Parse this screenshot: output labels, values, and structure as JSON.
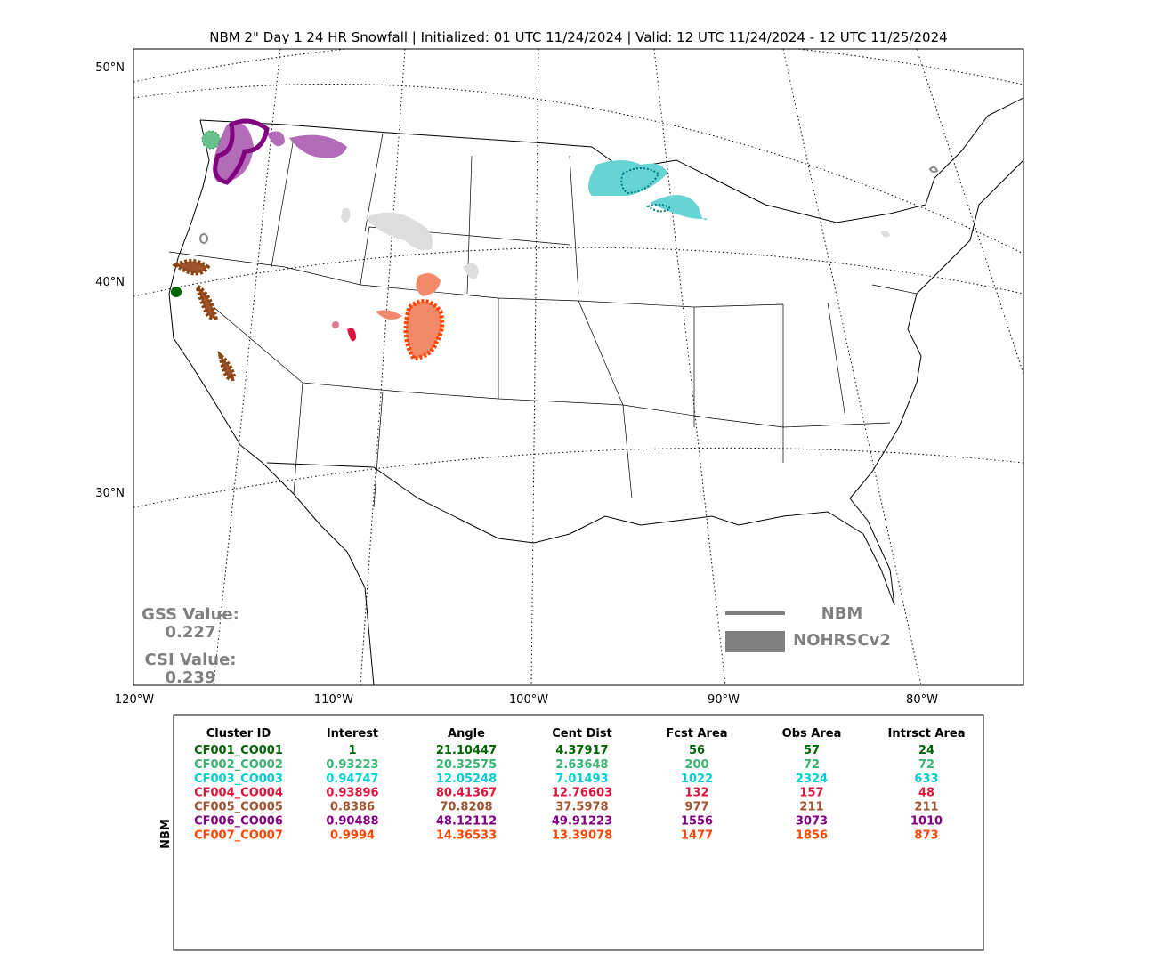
{
  "header": {
    "title": "NBM 2\" Day 1 24 HR Snowfall | Initialized: 01 UTC 11/24/2024 | Valid: 12 UTC 11/24/2024 - 12 UTC 11/25/2024"
  },
  "map": {
    "lat_labels": [
      "50°N",
      "40°N",
      "30°N"
    ],
    "lon_labels": [
      "120°W",
      "110°W",
      "100°W",
      "90°W",
      "80°W"
    ],
    "legend": [
      "NBM",
      "NOHRSCv2"
    ],
    "scores": [
      {
        "label": "GSS Value:",
        "value": "0.227"
      },
      {
        "label": "CSI Value:",
        "value": "0.239"
      }
    ]
  },
  "table": {
    "side_label": "NBM",
    "columns": [
      "Cluster ID",
      "Interest",
      "Angle",
      "Cent Dist",
      "Fcst Area",
      "Obs Area",
      "Intrsct Area"
    ],
    "rows": [
      [
        "CF001_CO001",
        "1",
        "21.10447",
        "4.37917",
        "56",
        "57",
        "24"
      ],
      [
        "CF002_CO002",
        "0.93223",
        "20.32575",
        "2.63648",
        "200",
        "72",
        "72"
      ],
      [
        "CF003_CO003",
        "0.94747",
        "12.05248",
        "7.01493",
        "1022",
        "2324",
        "633"
      ],
      [
        "CF004_CO004",
        "0.93896",
        "80.41367",
        "12.76603",
        "132",
        "157",
        "48"
      ],
      [
        "CF005_CO005",
        "0.8386",
        "70.8208",
        "37.5978",
        "977",
        "211",
        "211"
      ],
      [
        "CF006_CO006",
        "0.90488",
        "48.12112",
        "49.91223",
        "1556",
        "3073",
        "1010"
      ],
      [
        "CF007_CO007",
        "0.9994",
        "14.36533",
        "13.39078",
        "1477",
        "1856",
        "873"
      ]
    ],
    "row_colors": [
      "#006400",
      "#3cb371",
      "#00ced1",
      "#dc143c",
      "#a0522d",
      "#800080",
      "#ff4500"
    ]
  }
}
